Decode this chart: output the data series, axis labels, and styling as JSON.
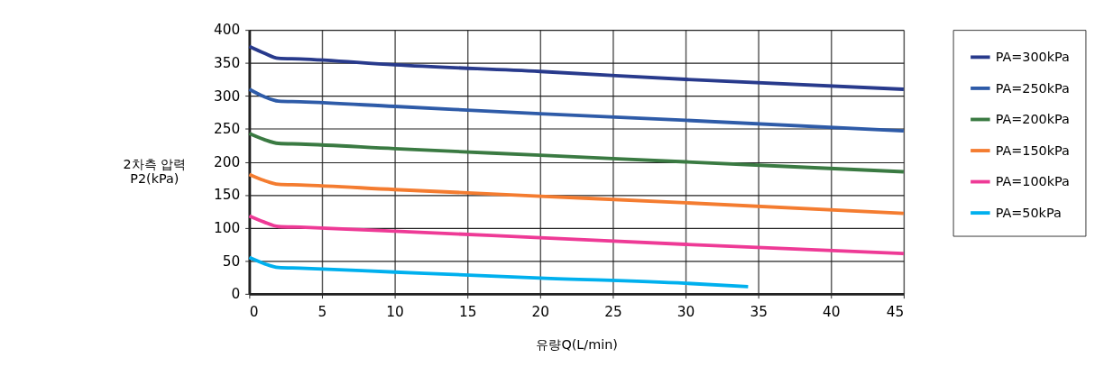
{
  "chart_data": {
    "type": "line",
    "xlabel": "유량Q(L/min)",
    "ylabel": "2차측 압력\nP2(kPa)",
    "xlim": [
      0,
      45
    ],
    "xticks": [
      0,
      5,
      10,
      15,
      20,
      25,
      30,
      35,
      40,
      45
    ],
    "ylim": [
      0,
      400
    ],
    "yticks": [
      0,
      50,
      100,
      150,
      200,
      250,
      300,
      350,
      400
    ],
    "grid": true,
    "legend": "right",
    "line_style": "solid",
    "marker": "none",
    "series": [
      {
        "name": "PA=300kPa",
        "color": "#283a8c",
        "x": [
          0,
          1,
          2,
          3.5,
          10,
          20,
          30,
          45
        ],
        "values": [
          375,
          365,
          357,
          356,
          347,
          337,
          325,
          310
        ]
      },
      {
        "name": "PA=250kPa",
        "color": "#2e5ba8",
        "x": [
          0,
          1,
          2,
          3.5,
          10,
          20,
          30,
          45
        ],
        "values": [
          310,
          299,
          292,
          291,
          284,
          273,
          263,
          247
        ]
      },
      {
        "name": "PA=200kPa",
        "color": "#3a7a42",
        "x": [
          0,
          1,
          2,
          3.5,
          10,
          20,
          30,
          45
        ],
        "values": [
          243,
          234,
          228,
          227,
          220,
          210,
          200,
          185
        ]
      },
      {
        "name": "PA=150kPa",
        "color": "#f47c30",
        "x": [
          0,
          1,
          2,
          3.5,
          10,
          20,
          30,
          45
        ],
        "values": [
          181,
          172,
          166,
          165,
          158,
          148,
          138,
          122
        ]
      },
      {
        "name": "PA=100kPa",
        "color": "#ee3a96",
        "x": [
          0,
          1,
          2,
          3.5,
          10,
          20,
          30,
          45
        ],
        "values": [
          118,
          109,
          102,
          101,
          95,
          85,
          75,
          61
        ]
      },
      {
        "name": "PA=50kPa",
        "color": "#00b0ee",
        "x": [
          0,
          1,
          2,
          3.5,
          10,
          20,
          30,
          34.3
        ],
        "values": [
          55,
          46,
          40,
          39,
          33,
          24,
          16,
          11
        ]
      }
    ]
  }
}
